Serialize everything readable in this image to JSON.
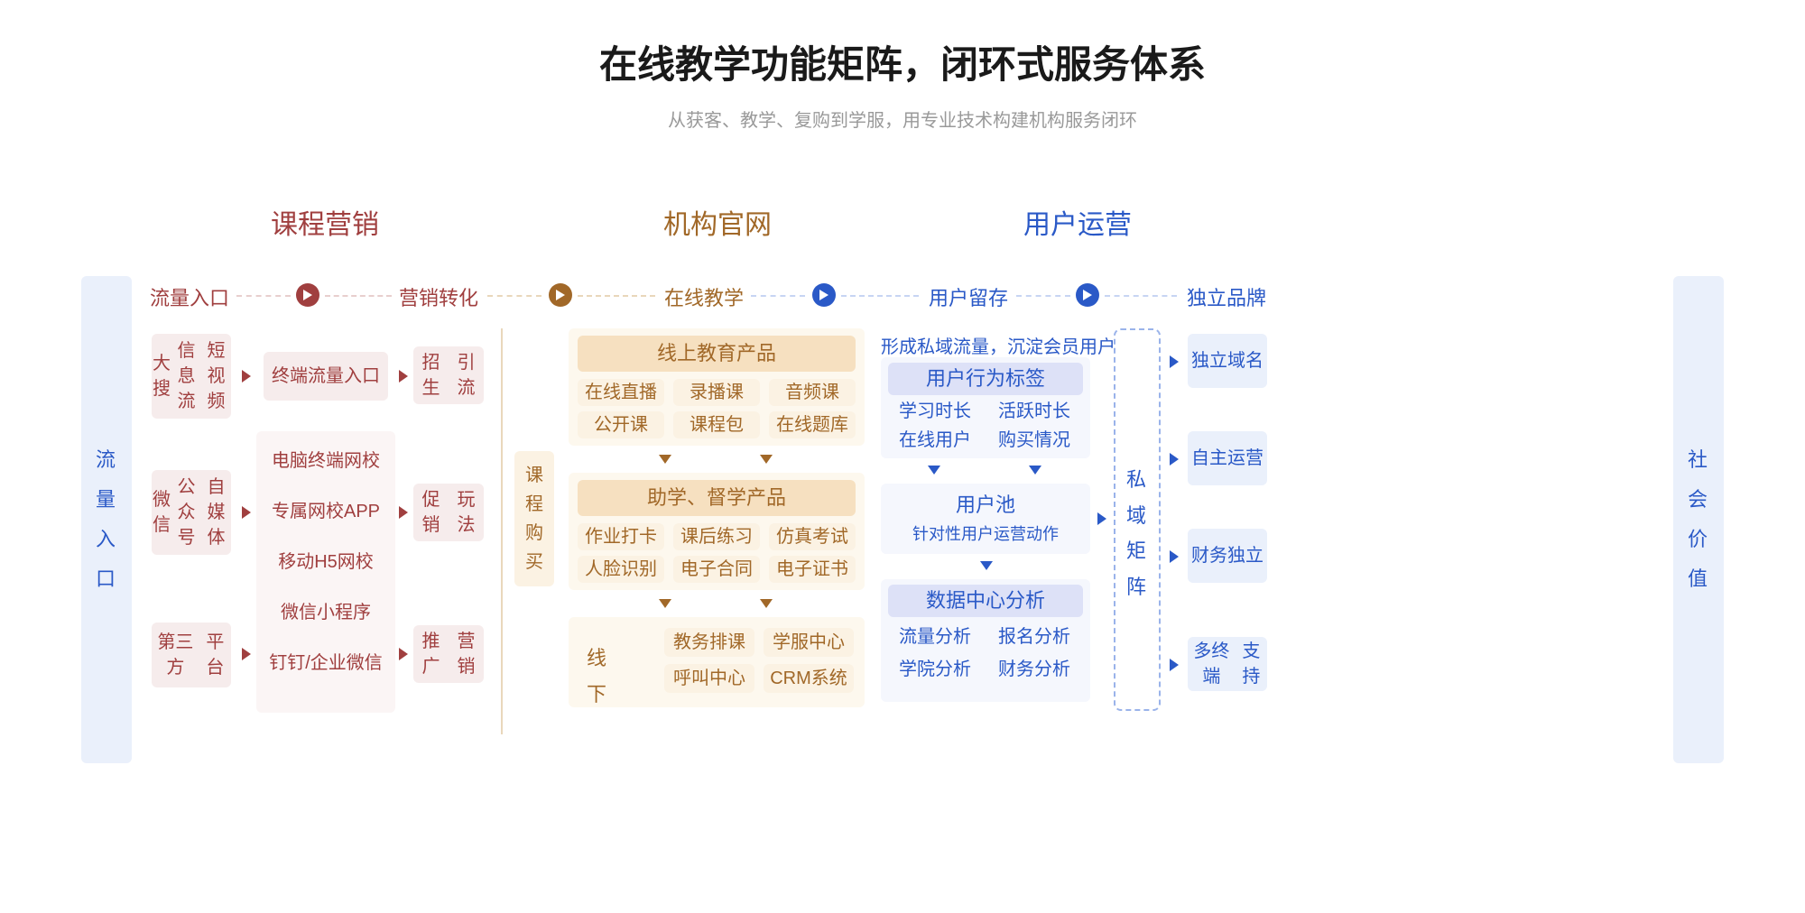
{
  "title": "在线教学功能矩阵，闭环式服务体系",
  "subtitle": "从获客、教学、复购到学服，用专业技术构建机构服务闭环",
  "colors": {
    "maroon": "#a03f3f",
    "brown": "#a16828",
    "blue": "#2a59c7",
    "pink_bg": "#f6ecec",
    "pink_light": "#fbf5f5",
    "tan_header": "#f6e0c0",
    "tan_bg": "#fbf2e3",
    "tan_light": "#fdf8ee",
    "purple_header": "#dde1f7",
    "purple_bg": "#eef1fb",
    "purple_light": "#f5f7fd",
    "blue_bg": "#eaf0fb",
    "dash_border": "#9ab3ea"
  },
  "sections": {
    "s1": "课程营销",
    "s2": "机构官网",
    "s3": "用户运营"
  },
  "steps": {
    "a": "流量入口",
    "b": "营销转化",
    "c": "在线教学",
    "d": "用户留存",
    "e": "独立品牌"
  },
  "pillar_left": "流量入口",
  "pillar_right": "社会价值",
  "col1": {
    "row1": "大搜\n信息流\n短视频",
    "row2": "微信\n公众号\n自媒体",
    "row3": "第三方\n平台"
  },
  "col2": {
    "r1": "终端流量入口",
    "list": [
      "电脑终端网校",
      "专属网校APP",
      "移动H5网校",
      "微信小程序",
      "钉钉/企业微信"
    ]
  },
  "col3": {
    "r1": "招生\n引流",
    "r2": "促销\n玩法",
    "r3": "推广\n营销"
  },
  "course_purchase": "课程购买",
  "online_panel": {
    "header": "线上教育产品",
    "items": [
      "在线直播",
      "录播课",
      "音频课",
      "公开课",
      "课程包",
      "在线题库"
    ]
  },
  "assist_panel": {
    "header": "助学、督学产品",
    "items": [
      "作业打卡",
      "课后练习",
      "仿真考试",
      "人脸识别",
      "电子合同",
      "电子证书"
    ]
  },
  "offline_panel": {
    "label": "线下",
    "items": [
      "教务排课",
      "学服中心",
      "呼叫中心",
      "CRM系统"
    ]
  },
  "retention": {
    "tagline": "形成私域流量，沉淀会员用户",
    "header1": "用户行为标签",
    "tags1": [
      "学习时长",
      "活跃时长",
      "在线用户",
      "购买情况"
    ],
    "pool_title": "用户池",
    "pool_sub": "针对性用户运营动作",
    "header2": "数据中心分析",
    "tags2": [
      "流量分析",
      "报名分析",
      "学院分析",
      "财务分析"
    ]
  },
  "private_matrix": "私域矩阵",
  "brand": [
    "独立\n域名",
    "自主\n运营",
    "财务\n独立",
    "多终端\n支持"
  ]
}
